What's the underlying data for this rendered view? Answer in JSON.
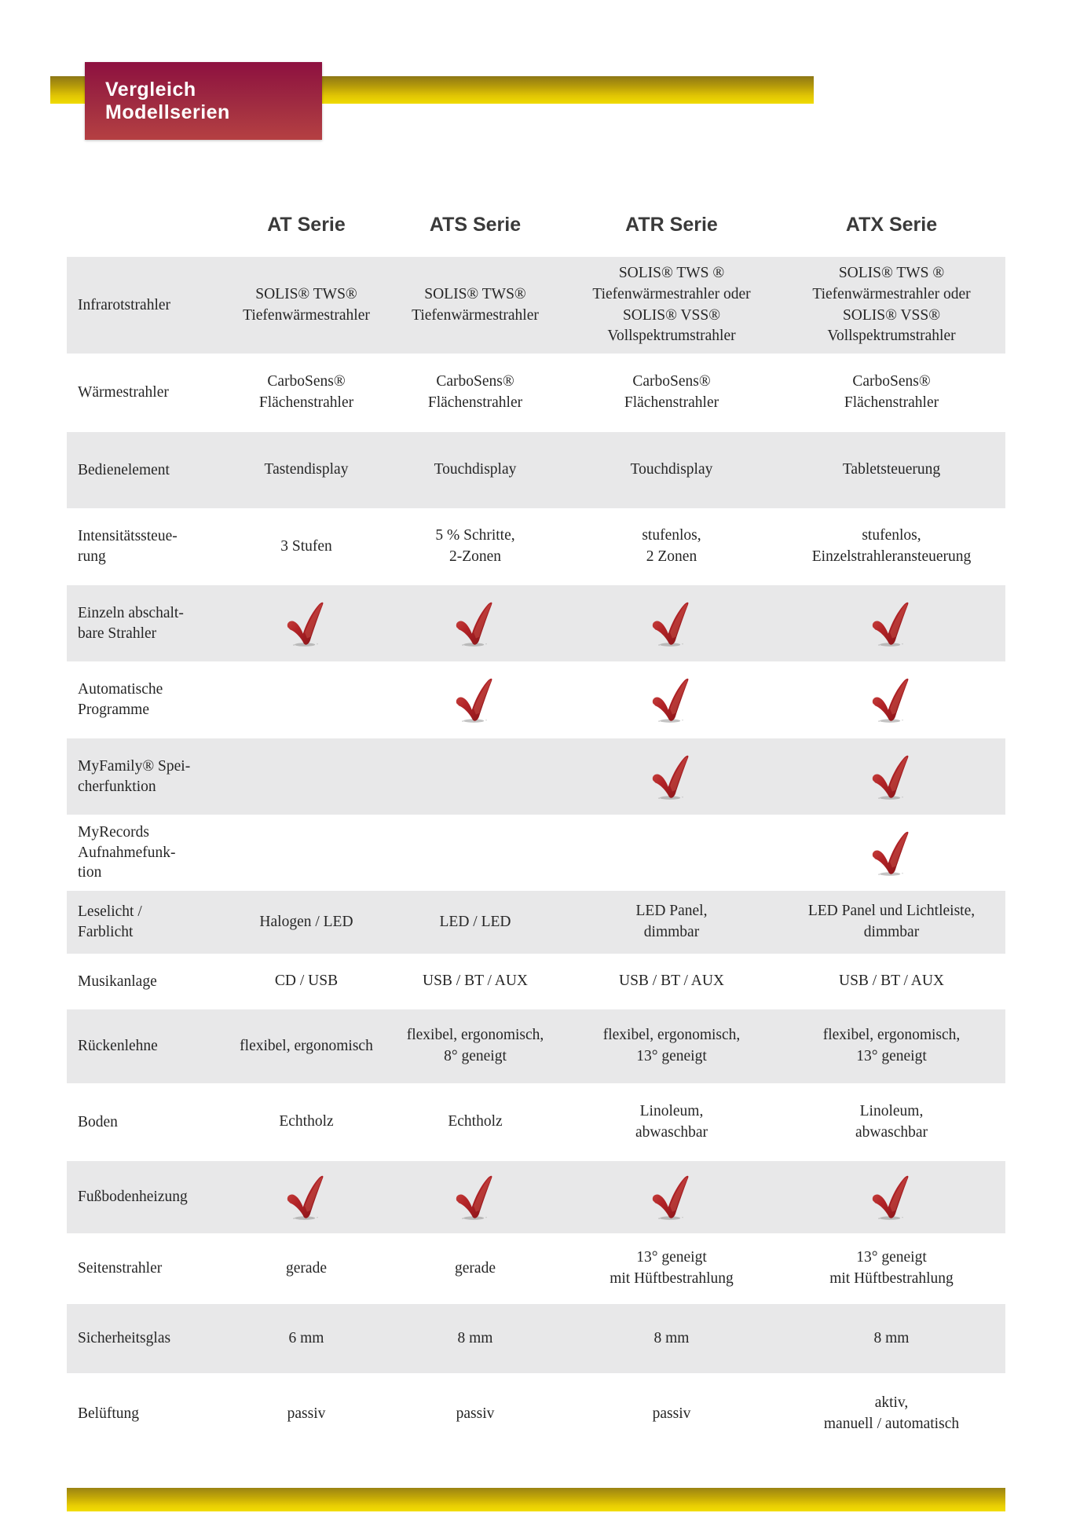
{
  "banner": {
    "title": "Vergleich Modellserien"
  },
  "colors": {
    "banner_maroon": "#8d1040",
    "gold": "#e8cd03",
    "row_gray": "#e8e8e9",
    "check_red": "#b22327",
    "header_text": "#3a3a3a",
    "body_text": "#262626"
  },
  "table": {
    "columns": [
      "AT Serie",
      "ATS Serie",
      "ATR Serie",
      "ATX Serie"
    ],
    "rows": [
      {
        "label": "Infrarotstrahler",
        "cells": [
          {
            "text": "SOLIS® TWS®\nTiefenwärmestrahler"
          },
          {
            "text": "SOLIS® TWS®\nTiefenwärmestrahler"
          },
          {
            "text": "SOLIS® TWS ®\nTiefenwärmestrahler oder\nSOLIS® VSS®\nVollspektrumstrahler"
          },
          {
            "text": "SOLIS® TWS ®\nTiefenwärmestrahler oder\nSOLIS® VSS®\nVollspektrumstrahler"
          }
        ]
      },
      {
        "label": "Wärmestrahler",
        "cells": [
          {
            "text": "CarboSens®\nFlächenstrahler"
          },
          {
            "text": "CarboSens®\nFlächenstrahler"
          },
          {
            "text": "CarboSens®\nFlächenstrahler"
          },
          {
            "text": "CarboSens®\nFlächenstrahler"
          }
        ]
      },
      {
        "label": "Bedienelement",
        "cells": [
          {
            "text": "Tastendisplay"
          },
          {
            "text": "Touchdisplay"
          },
          {
            "text": "Touchdisplay"
          },
          {
            "text": "Tabletsteuerung"
          }
        ]
      },
      {
        "label": "Intensitätssteue-\nrung",
        "cells": [
          {
            "text": "3 Stufen"
          },
          {
            "text": "5 % Schritte,\n2-Zonen"
          },
          {
            "text": "stufenlos,\n2 Zonen"
          },
          {
            "text": "stufenlos,\nEinzelstrahleransteuerung"
          }
        ]
      },
      {
        "label": "Einzeln abschalt-\nbare Strahler",
        "cells": [
          {
            "check": true
          },
          {
            "check": true
          },
          {
            "check": true
          },
          {
            "check": true
          }
        ]
      },
      {
        "label": "Automatische\nProgramme",
        "cells": [
          {},
          {
            "check": true
          },
          {
            "check": true
          },
          {
            "check": true
          }
        ]
      },
      {
        "label": "MyFamily® Spei-\ncherfunktion",
        "cells": [
          {},
          {},
          {
            "check": true
          },
          {
            "check": true
          }
        ]
      },
      {
        "label": "MyRecords\nAufnahmefunk-\ntion",
        "cells": [
          {},
          {},
          {},
          {
            "check": true
          }
        ]
      },
      {
        "label": "Leselicht /\nFarblicht",
        "cells": [
          {
            "text": "Halogen / LED"
          },
          {
            "text": "LED / LED"
          },
          {
            "text": "LED Panel,\ndimmbar"
          },
          {
            "text": "LED Panel und Lichtleiste,\ndimmbar"
          }
        ]
      },
      {
        "label": "Musikanlage",
        "cells": [
          {
            "text": "CD / USB"
          },
          {
            "text": "USB / BT / AUX"
          },
          {
            "text": "USB / BT / AUX"
          },
          {
            "text": "USB / BT / AUX"
          }
        ]
      },
      {
        "label": "Rückenlehne",
        "cells": [
          {
            "text": "flexibel, ergonomisch"
          },
          {
            "text": "flexibel, ergonomisch,\n8° geneigt"
          },
          {
            "text": "flexibel, ergonomisch,\n13° geneigt"
          },
          {
            "text": "flexibel, ergonomisch,\n13° geneigt"
          }
        ]
      },
      {
        "label": "Boden",
        "cells": [
          {
            "text": "Echtholz"
          },
          {
            "text": "Echtholz"
          },
          {
            "text": "Linoleum,\nabwaschbar"
          },
          {
            "text": "Linoleum,\nabwaschbar"
          }
        ]
      },
      {
        "label": "Fußbodenheizung",
        "cells": [
          {
            "check": true
          },
          {
            "check": true
          },
          {
            "check": true
          },
          {
            "check": true
          }
        ]
      },
      {
        "label": "Seitenstrahler",
        "cells": [
          {
            "text": "gerade"
          },
          {
            "text": "gerade"
          },
          {
            "text": "13° geneigt\nmit Hüftbestrahlung"
          },
          {
            "text": "13° geneigt\nmit Hüftbestrahlung"
          }
        ]
      },
      {
        "label": "Sicherheitsglas",
        "cells": [
          {
            "text": "6 mm"
          },
          {
            "text": "8 mm"
          },
          {
            "text": "8 mm"
          },
          {
            "text": "8 mm"
          }
        ]
      },
      {
        "label": "Belüftung",
        "cells": [
          {
            "text": "passiv"
          },
          {
            "text": "passiv"
          },
          {
            "text": "passiv"
          },
          {
            "text": "aktiv,\nmanuell / automatisch"
          }
        ]
      }
    ]
  }
}
